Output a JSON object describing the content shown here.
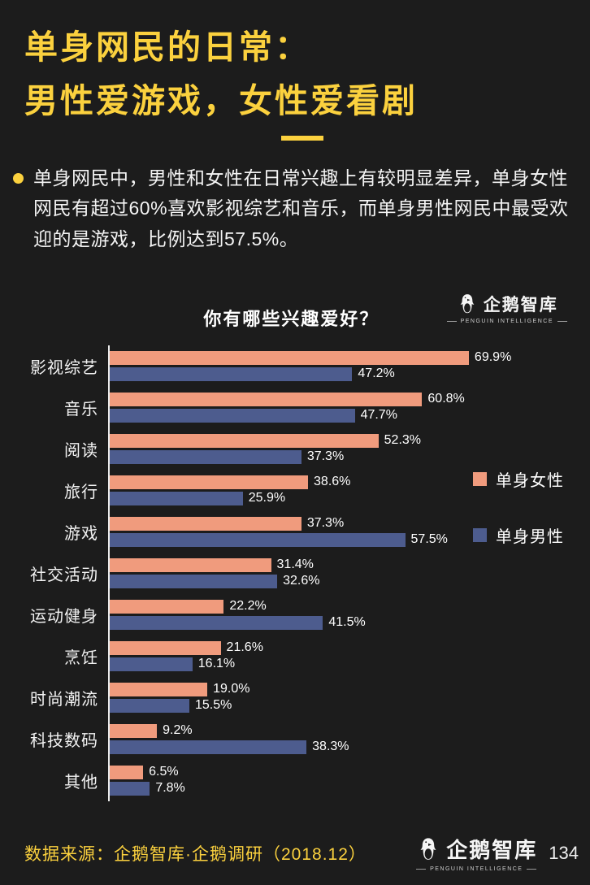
{
  "page": {
    "bg_color": "#1c1c1c",
    "accent_yellow": "#fbd13e"
  },
  "header": {
    "title_line1": "单身网民的日常：",
    "title_line2": "男性爱游戏，女性爱看剧"
  },
  "summary": {
    "text": "单身网民中，男性和女性在日常兴趣上有较明显差异，单身女性网民有超过60%喜欢影视综艺和音乐，而单身男性网民中最受欢迎的是游戏，比例达到57.5%。"
  },
  "brand": {
    "name": "企鹅智库",
    "subtitle": "PENGUIN INTELLIGENCE"
  },
  "chart_data": {
    "type": "bar",
    "orientation": "horizontal",
    "title": "你有哪些兴趣爱好？",
    "categories": [
      "影视综艺",
      "音乐",
      "阅读",
      "旅行",
      "游戏",
      "社交活动",
      "运动健身",
      "烹饪",
      "时尚潮流",
      "科技数码",
      "其他"
    ],
    "series": [
      {
        "name": "单身女性",
        "color": "#f09b7d",
        "values": [
          69.9,
          60.8,
          52.3,
          38.6,
          37.3,
          31.4,
          22.2,
          21.6,
          19.0,
          9.2,
          6.5
        ]
      },
      {
        "name": "单身男性",
        "color": "#4d5c8e",
        "values": [
          47.2,
          47.7,
          37.3,
          25.9,
          57.5,
          32.6,
          41.5,
          16.1,
          15.5,
          38.3,
          7.8
        ]
      }
    ],
    "value_suffix": "%",
    "value_decimals": 1,
    "xlim": [
      0,
      90
    ],
    "grid": false,
    "legend_position": "right"
  },
  "footer": {
    "source": "数据来源：企鹅智库·企鹅调研（2018.12）",
    "page_number": "134"
  }
}
